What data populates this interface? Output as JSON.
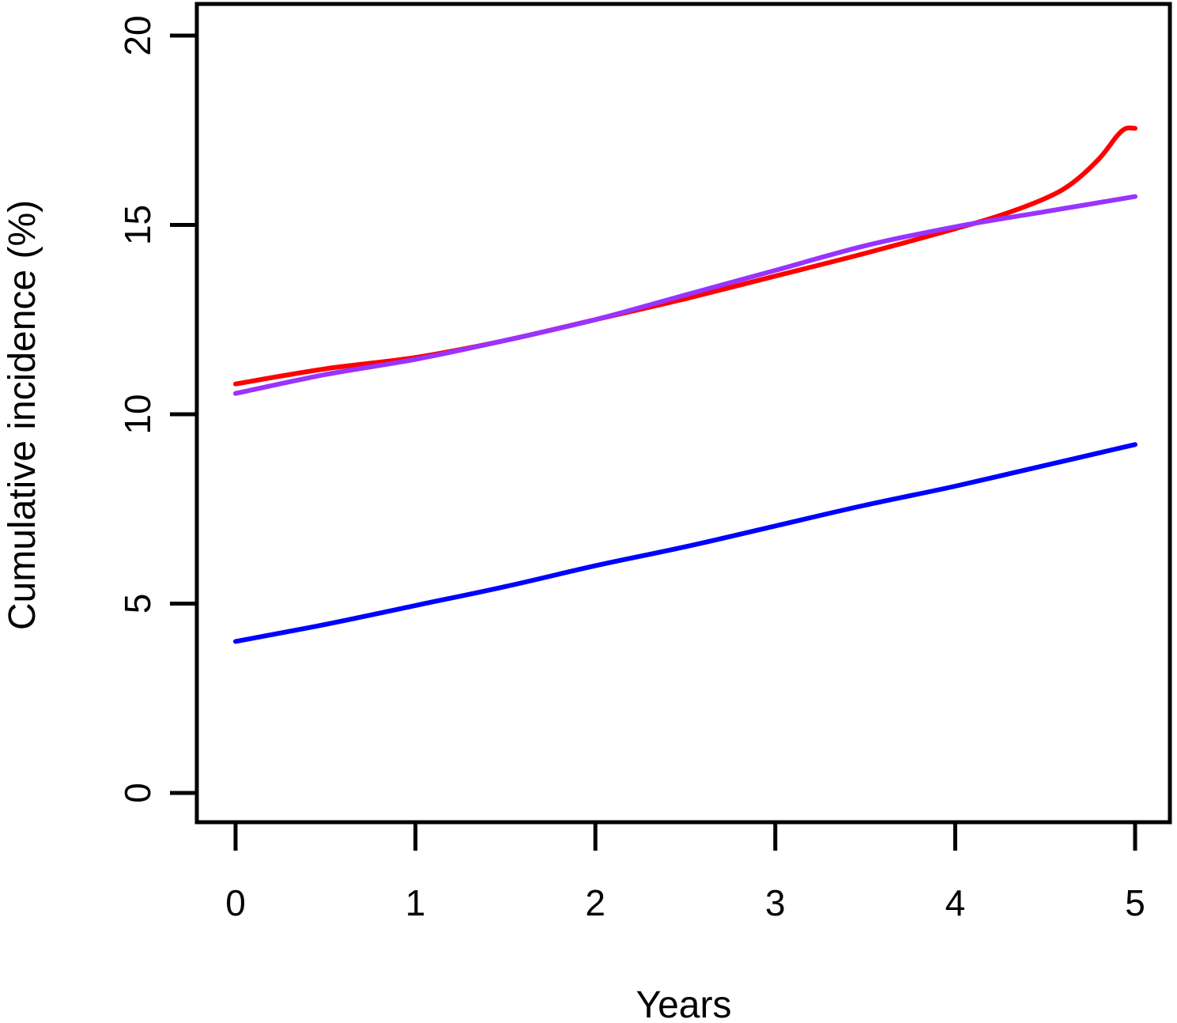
{
  "chart_data": {
    "type": "line",
    "title": "",
    "xlabel": "Years",
    "ylabel": "Cumulative incidence (%)",
    "xlim": [
      0,
      5
    ],
    "ylim": [
      0,
      20
    ],
    "xticks": [
      0,
      1,
      2,
      3,
      4,
      5
    ],
    "yticks": [
      0,
      5,
      10,
      15,
      20
    ],
    "grid": false,
    "legend": "none",
    "series": [
      {
        "color": "#ff0000",
        "x": [
          0,
          0.5,
          1,
          1.5,
          2,
          2.5,
          3,
          3.5,
          4,
          4.25,
          4.5,
          4.65,
          4.8,
          4.9,
          4.95,
          5
        ],
        "y": [
          10.8,
          11.2,
          11.5,
          11.95,
          12.5,
          13.05,
          13.65,
          14.25,
          14.9,
          15.25,
          15.7,
          16.1,
          16.75,
          17.35,
          17.55,
          17.55
        ]
      },
      {
        "color": "#9933ff",
        "x": [
          0,
          0.5,
          1,
          1.5,
          2,
          2.5,
          3,
          3.5,
          4,
          4.5,
          5
        ],
        "y": [
          10.55,
          11.05,
          11.45,
          11.95,
          12.5,
          13.15,
          13.8,
          14.45,
          14.95,
          15.35,
          15.75
        ]
      },
      {
        "color": "#0000ff",
        "x": [
          0,
          0.5,
          1,
          1.5,
          2,
          2.5,
          3,
          3.5,
          4,
          4.5,
          5
        ],
        "y": [
          4.0,
          4.45,
          4.95,
          5.45,
          6.0,
          6.5,
          7.05,
          7.6,
          8.1,
          8.65,
          9.2
        ]
      }
    ]
  }
}
